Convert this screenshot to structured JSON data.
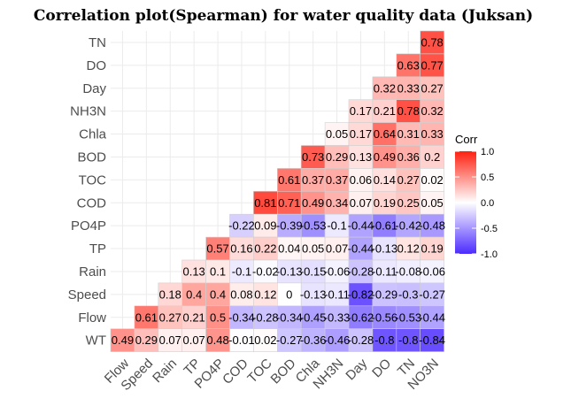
{
  "chart_data": {
    "type": "heatmap",
    "title": "Correlation plot(Spearman) for water quality data (Juksan)",
    "row_labels": [
      "TN",
      "DO",
      "Day",
      "NH3N",
      "Chla",
      "BOD",
      "TOC",
      "COD",
      "PO4P",
      "TP",
      "Rain",
      "Speed",
      "Flow",
      "WT"
    ],
    "col_labels": [
      "Flow",
      "Speed",
      "Rain",
      "TP",
      "PO4P",
      "COD",
      "TOC",
      "BOD",
      "Chla",
      "NH3N",
      "Day",
      "DO",
      "TN",
      "NO3N"
    ],
    "values": [
      [
        null,
        null,
        null,
        null,
        null,
        null,
        null,
        null,
        null,
        null,
        null,
        null,
        null,
        0.78
      ],
      [
        null,
        null,
        null,
        null,
        null,
        null,
        null,
        null,
        null,
        null,
        null,
        null,
        0.63,
        0.77
      ],
      [
        null,
        null,
        null,
        null,
        null,
        null,
        null,
        null,
        null,
        null,
        null,
        0.32,
        0.33,
        0.27
      ],
      [
        null,
        null,
        null,
        null,
        null,
        null,
        null,
        null,
        null,
        null,
        0.17,
        0.21,
        0.78,
        0.32
      ],
      [
        null,
        null,
        null,
        null,
        null,
        null,
        null,
        null,
        null,
        0.05,
        0.17,
        0.64,
        0.31,
        0.33
      ],
      [
        null,
        null,
        null,
        null,
        null,
        null,
        null,
        null,
        0.73,
        0.29,
        0.13,
        0.49,
        0.36,
        0.2
      ],
      [
        null,
        null,
        null,
        null,
        null,
        null,
        null,
        0.61,
        0.37,
        0.37,
        0.06,
        0.14,
        0.27,
        0.02
      ],
      [
        null,
        null,
        null,
        null,
        null,
        null,
        0.81,
        0.71,
        0.49,
        0.34,
        0.07,
        0.19,
        0.25,
        0.05
      ],
      [
        null,
        null,
        null,
        null,
        null,
        -0.22,
        0.09,
        -0.39,
        -0.53,
        -0.1,
        -0.44,
        -0.61,
        -0.42,
        -0.48
      ],
      [
        null,
        null,
        null,
        null,
        0.57,
        0.16,
        0.22,
        0.04,
        0.05,
        0.07,
        -0.44,
        -0.13,
        0.12,
        0.19
      ],
      [
        null,
        null,
        null,
        0.13,
        0.1,
        -0.1,
        -0.02,
        -0.13,
        -0.15,
        -0.06,
        -0.28,
        -0.11,
        -0.08,
        -0.06
      ],
      [
        null,
        null,
        0.18,
        0.4,
        0.4,
        0.08,
        0.12,
        0,
        -0.13,
        -0.11,
        -0.82,
        -0.29,
        -0.3,
        -0.27
      ],
      [
        null,
        0.61,
        0.27,
        0.21,
        0.5,
        -0.34,
        -0.28,
        -0.34,
        -0.45,
        -0.33,
        -0.62,
        -0.56,
        -0.53,
        -0.44
      ],
      [
        0.49,
        0.29,
        0.07,
        0.07,
        0.48,
        -0.01,
        0.02,
        -0.27,
        -0.36,
        -0.46,
        -0.28,
        -0.8,
        -0.8,
        -0.84
      ]
    ],
    "value_labels": [
      [
        null,
        null,
        null,
        null,
        null,
        null,
        null,
        null,
        null,
        null,
        null,
        null,
        null,
        "0.78"
      ],
      [
        null,
        null,
        null,
        null,
        null,
        null,
        null,
        null,
        null,
        null,
        null,
        null,
        "0.63",
        "0.77"
      ],
      [
        null,
        null,
        null,
        null,
        null,
        null,
        null,
        null,
        null,
        null,
        null,
        "0.32",
        "0.33",
        "0.27"
      ],
      [
        null,
        null,
        null,
        null,
        null,
        null,
        null,
        null,
        null,
        null,
        "0.17",
        "0.21",
        "0.78",
        "0.32"
      ],
      [
        null,
        null,
        null,
        null,
        null,
        null,
        null,
        null,
        null,
        "0.05",
        "0.17",
        "0.64",
        "0.31",
        "0.33"
      ],
      [
        null,
        null,
        null,
        null,
        null,
        null,
        null,
        null,
        "0.73",
        "0.29",
        "0.13",
        "0.49",
        "0.36",
        "0.2"
      ],
      [
        null,
        null,
        null,
        null,
        null,
        null,
        null,
        "0.61",
        "0.37",
        "0.37",
        "0.06",
        "0.14",
        "0.27",
        "0.02"
      ],
      [
        null,
        null,
        null,
        null,
        null,
        null,
        "0.81",
        "0.71",
        "0.49",
        "0.34",
        "0.07",
        "0.19",
        "0.25",
        "0.05"
      ],
      [
        null,
        null,
        null,
        null,
        null,
        "-0.22",
        "0.09",
        "-0.39",
        "-0.53",
        "-0.1",
        "-0.44",
        "-0.61",
        "-0.42",
        "-0.48"
      ],
      [
        null,
        null,
        null,
        null,
        "0.57",
        "0.16",
        "0.22",
        "0.04",
        "0.05",
        "0.07",
        "-0.44",
        "-0.13",
        "0.12",
        "0.19"
      ],
      [
        null,
        null,
        null,
        "0.13",
        "0.1",
        "-0.1",
        "-0.02",
        "-0.13",
        "-0.15",
        "-0.06",
        "-0.28",
        "-0.11",
        "-0.08",
        "-0.06"
      ],
      [
        null,
        null,
        "0.18",
        "0.4",
        "0.4",
        "0.08",
        "0.12",
        "0",
        "-0.13",
        "-0.11",
        "-0.82",
        "-0.29",
        "-0.3",
        "-0.27"
      ],
      [
        null,
        "0.61",
        "0.27",
        "0.21",
        "0.5",
        "-0.34",
        "-0.28",
        "-0.34",
        "-0.45",
        "-0.33",
        "-0.62",
        "-0.56",
        "-0.53",
        "-0.44"
      ],
      [
        "0.49",
        "0.29",
        "0.07",
        "0.07",
        "0.48",
        "-0.01",
        "0.02",
        "-0.27",
        "-0.36",
        "-0.46",
        "-0.28",
        "-0.8",
        "-0.8",
        "-0.84"
      ]
    ],
    "legend": {
      "title": "Corr",
      "ticks": [
        1.0,
        0.5,
        0.0,
        -0.5,
        -1.0
      ],
      "tick_labels": [
        "1.0",
        "0.5",
        "0.0",
        "-0.5",
        "-1.0"
      ],
      "range": [
        -1,
        1
      ],
      "placement": "right"
    },
    "colors": {
      "low": "#4b2bff",
      "mid": "#ffffff",
      "high": "#ff2010",
      "grid": "#ebebeb"
    },
    "grid": true
  }
}
